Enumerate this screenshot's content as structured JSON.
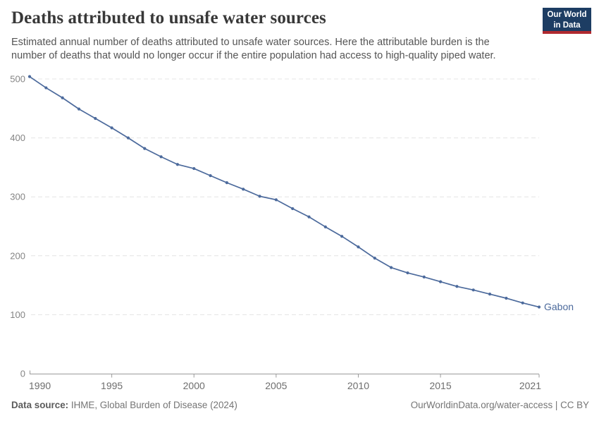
{
  "header": {
    "title": "Deaths attributed to unsafe water sources",
    "subtitle": "Estimated annual number of deaths attributed to unsafe water sources. Here the attributable burden is the number of deaths that would no longer occur if the entire population had access to high-quality piped water.",
    "logo": {
      "line1": "Our World",
      "line2": "in Data",
      "bg_color": "#1d3d63",
      "accent_color": "#b0292f"
    }
  },
  "chart_data": {
    "type": "line",
    "title": "Deaths attributed to unsafe water sources",
    "xlabel": "",
    "ylabel": "",
    "x": [
      1990,
      1991,
      1992,
      1993,
      1994,
      1995,
      1996,
      1997,
      1998,
      1999,
      2000,
      2001,
      2002,
      2003,
      2004,
      2005,
      2006,
      2007,
      2008,
      2009,
      2010,
      2011,
      2012,
      2013,
      2014,
      2015,
      2016,
      2017,
      2018,
      2019,
      2020,
      2021
    ],
    "series": [
      {
        "name": "Gabon",
        "color": "#4c6a9c",
        "values": [
          504,
          485,
          468,
          449,
          433,
          417,
          400,
          382,
          368,
          355,
          348,
          336,
          324,
          313,
          301,
          295,
          280,
          266,
          249,
          233,
          215,
          196,
          180,
          171,
          164,
          156,
          148,
          142,
          135,
          128,
          120,
          113
        ]
      }
    ],
    "xlim": [
      1990,
      2021
    ],
    "ylim": [
      0,
      500
    ],
    "xticks": [
      1990,
      1995,
      2000,
      2005,
      2010,
      2015,
      2021
    ],
    "yticks": [
      0,
      100,
      200,
      300,
      400,
      500
    ],
    "grid": "horizontal-dashed",
    "grid_color": "#e4e4e4",
    "axis_color": "#9a9a9a",
    "legend_position": "end-of-line-label",
    "markers": true
  },
  "footer": {
    "source_label": "Data source:",
    "source_text": " IHME, Global Burden of Disease (2024)",
    "citation": "OurWorldinData.org/water-access | CC BY"
  }
}
